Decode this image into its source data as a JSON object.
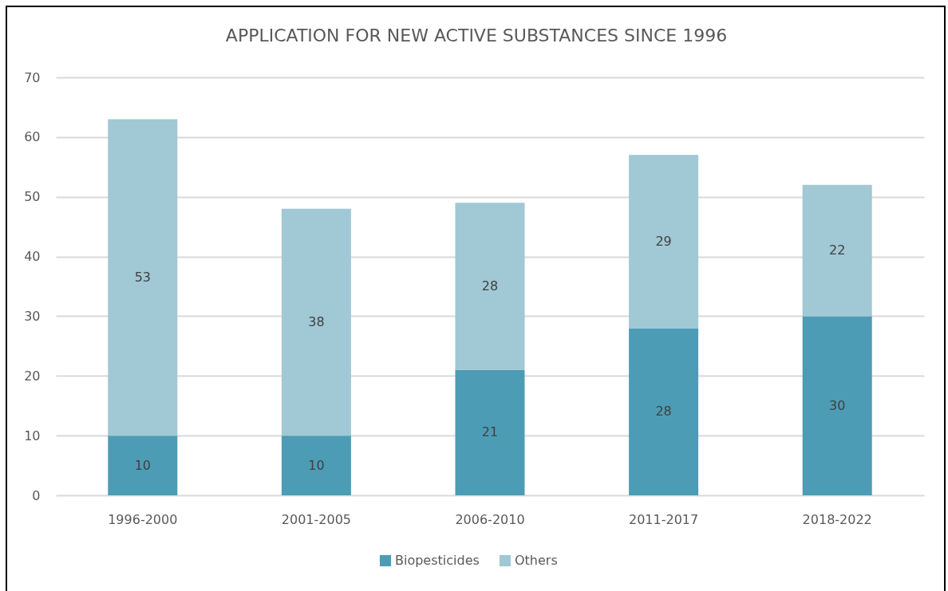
{
  "chart_data": {
    "type": "bar",
    "title": "APPLICATION FOR NEW ACTIVE SUBSTANCES SINCE 1996",
    "categories": [
      "1996-2000",
      "2001-2005",
      "2006-2010",
      "2011-2017",
      "2018-2022"
    ],
    "series": [
      {
        "name": "Biopesticides",
        "color": "#4d9cb5",
        "values": [
          10,
          10,
          21,
          28,
          30
        ]
      },
      {
        "name": "Others",
        "color": "#a0c8d5",
        "values": [
          53,
          38,
          28,
          29,
          22
        ]
      }
    ],
    "stacked": true,
    "ylim": [
      0,
      70
    ],
    "yticks": [
      0,
      10,
      20,
      30,
      40,
      50,
      60,
      70
    ],
    "grid": "y",
    "legend": "bottom",
    "data_labels": true
  }
}
